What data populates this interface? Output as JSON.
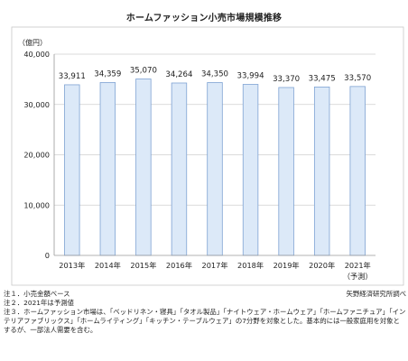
{
  "chart_data": {
    "type": "bar",
    "title": "ホームファッション小売市場規模推移",
    "unit_label": "（億円）",
    "categories": [
      "2013年",
      "2014年",
      "2015年",
      "2016年",
      "2017年",
      "2018年",
      "2019年",
      "2020年",
      "2021年"
    ],
    "category_sublabels": [
      "",
      "",
      "",
      "",
      "",
      "",
      "",
      "",
      "（予測）"
    ],
    "values": [
      33911,
      34359,
      35070,
      34264,
      34350,
      33994,
      33370,
      33475,
      33570
    ],
    "value_labels": [
      "33,911",
      "34,359",
      "35,070",
      "34,264",
      "34,350",
      "33,994",
      "33,370",
      "33,475",
      "33,570"
    ],
    "ylim": [
      0,
      40000
    ],
    "yticks": [
      0,
      10000,
      20000,
      30000,
      40000
    ],
    "ytick_labels": [
      "0",
      "10,000",
      "20,000",
      "30,000",
      "40,000"
    ],
    "grid": true,
    "bar_color": "#dce9f8",
    "bar_edge_color": "#7fa3d3"
  },
  "notes": {
    "note1": "注１．小売金額ベース",
    "note2": "注２．2021年は予測値",
    "note3": "注３．ホームファッション市場は、「ベッドリネン・寝具」「タオル製品」「ナイトウェア・ホームウェア」「ホームファニチュア」「インテリアファブリックス」「ホームライティング」「キッチン・テーブルウェア」の7分野を対象とした。基本的には一般家庭用を対象とするが、一部法人需要を含む。",
    "source": "矢野経済研究所調べ"
  }
}
